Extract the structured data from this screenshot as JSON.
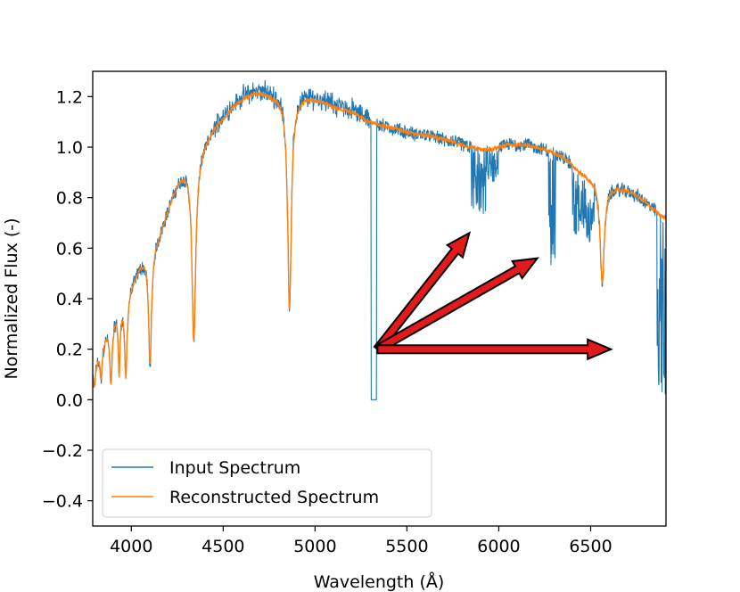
{
  "chart_data": {
    "type": "line",
    "title": "",
    "xlabel": "Wavelength (Å)",
    "ylabel": "Normalized Flux (-)",
    "xlim": [
      3790,
      6910
    ],
    "ylim": [
      -0.5,
      1.3
    ],
    "xticks": [
      4000,
      4500,
      5000,
      5500,
      6000,
      6500
    ],
    "xtick_labels": [
      "4000",
      "4500",
      "5000",
      "5500",
      "6000",
      "6500"
    ],
    "yticks": [
      -0.4,
      -0.2,
      0.0,
      0.2,
      0.4,
      0.6,
      0.8,
      1.0,
      1.2
    ],
    "ytick_labels": [
      "−0.4",
      "−0.2",
      "0.0",
      "0.2",
      "0.4",
      "0.6",
      "0.8",
      "1.0",
      "1.2"
    ],
    "legend_position": "lower-left",
    "series": [
      {
        "name": "Input Spectrum",
        "color": "#1f77b4"
      },
      {
        "name": "Reconstructed Spectrum",
        "color": "#ff7f0e"
      }
    ],
    "continuum": [
      [
        3790,
        0.1
      ],
      [
        3830,
        0.2
      ],
      [
        3870,
        0.28
      ],
      [
        3920,
        0.36
      ],
      [
        3970,
        0.42
      ],
      [
        4000,
        0.46
      ],
      [
        4050,
        0.54
      ],
      [
        4100,
        0.6
      ],
      [
        4150,
        0.66
      ],
      [
        4200,
        0.76
      ],
      [
        4250,
        0.86
      ],
      [
        4300,
        0.92
      ],
      [
        4350,
        0.95
      ],
      [
        4400,
        1.02
      ],
      [
        4450,
        1.08
      ],
      [
        4500,
        1.12
      ],
      [
        4550,
        1.16
      ],
      [
        4600,
        1.19
      ],
      [
        4650,
        1.21
      ],
      [
        4700,
        1.22
      ],
      [
        4750,
        1.21
      ],
      [
        4800,
        1.2
      ],
      [
        4850,
        1.19
      ],
      [
        4900,
        1.19
      ],
      [
        4950,
        1.2
      ],
      [
        5000,
        1.19
      ],
      [
        5050,
        1.18
      ],
      [
        5100,
        1.16
      ],
      [
        5150,
        1.15
      ],
      [
        5200,
        1.14
      ],
      [
        5250,
        1.12
      ],
      [
        5300,
        1.1
      ],
      [
        5350,
        1.09
      ],
      [
        5400,
        1.08
      ],
      [
        5450,
        1.07
      ],
      [
        5500,
        1.06
      ],
      [
        5550,
        1.05
      ],
      [
        5600,
        1.05
      ],
      [
        5650,
        1.04
      ],
      [
        5700,
        1.03
      ],
      [
        5750,
        1.02
      ],
      [
        5800,
        1.01
      ],
      [
        5850,
        1.0
      ],
      [
        5900,
        0.99
      ],
      [
        5950,
        0.99
      ],
      [
        6000,
        1.0
      ],
      [
        6050,
        1.01
      ],
      [
        6100,
        1.01
      ],
      [
        6150,
        1.01
      ],
      [
        6200,
        1.0
      ],
      [
        6250,
        0.99
      ],
      [
        6300,
        0.98
      ],
      [
        6350,
        0.96
      ],
      [
        6400,
        0.93
      ],
      [
        6450,
        0.9
      ],
      [
        6500,
        0.88
      ],
      [
        6550,
        0.87
      ],
      [
        6600,
        0.85
      ],
      [
        6650,
        0.84
      ],
      [
        6700,
        0.83
      ],
      [
        6750,
        0.81
      ],
      [
        6800,
        0.78
      ],
      [
        6850,
        0.75
      ],
      [
        6880,
        0.73
      ],
      [
        6910,
        0.72
      ]
    ],
    "absorption_lines": [
      {
        "x": 3798,
        "depth": 0.05,
        "width": 6
      },
      {
        "x": 3835,
        "depth": 0.08,
        "width": 7
      },
      {
        "x": 3889,
        "depth": 0.06,
        "width": 8
      },
      {
        "x": 3934,
        "depth": 0.1,
        "width": 6
      },
      {
        "x": 3970,
        "depth": 0.09,
        "width": 8
      },
      {
        "x": 4102,
        "depth": 0.14,
        "width": 10
      },
      {
        "x": 4340,
        "depth": 0.23,
        "width": 12
      },
      {
        "x": 4861,
        "depth": 0.36,
        "width": 12
      },
      {
        "x": 6563,
        "depth": 0.46,
        "width": 14
      }
    ],
    "annotations": [
      {
        "type": "arrow",
        "color": "#e31a1c",
        "from": [
          5340,
          0.2
        ],
        "to": [
          5840,
          0.66
        ]
      },
      {
        "type": "arrow",
        "color": "#e31a1c",
        "from": [
          5340,
          0.2
        ],
        "to": [
          6210,
          0.56
        ]
      },
      {
        "type": "arrow",
        "color": "#e31a1c",
        "from": [
          5340,
          0.2
        ],
        "to": [
          6610,
          0.2
        ]
      }
    ]
  }
}
